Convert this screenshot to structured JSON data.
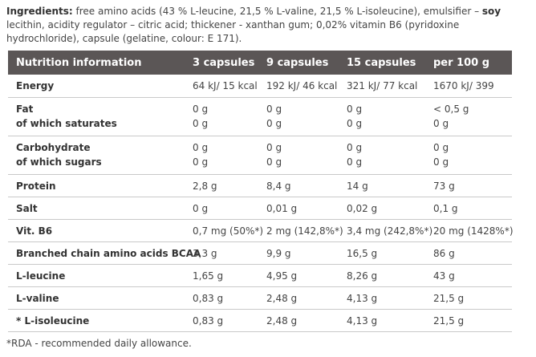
{
  "ingredients": {
    "label": "Ingredients:",
    "part1": " free amino acids (43 % L-leucine, 21,5 % L-valine, 21,5 % L-isoleucine), emulsifier – ",
    "soy": "soy",
    "part2": " lecithin, acidity regulator – citric acid; thickener - xanthan gum;  0,02% vitamin B6 (pyridoxine hydrochloride), capsule (gelatine, colour: E 171)."
  },
  "table": {
    "headers": [
      "Nutrition information",
      "3 capsules",
      "9 capsules",
      "15 capsules",
      "per 100 g"
    ],
    "rows": [
      {
        "labels": [
          "Energy"
        ],
        "values": [
          [
            "64 kJ/ 15 kcal"
          ],
          [
            "192 kJ/ 46 kcal"
          ],
          [
            "321 kJ/ 77 kcal"
          ],
          [
            "1670 kJ/ 399"
          ]
        ]
      },
      {
        "labels": [
          "Fat",
          "of which saturates"
        ],
        "values": [
          [
            "0 g",
            "0 g"
          ],
          [
            "0 g",
            "0 g"
          ],
          [
            "0 g",
            "0 g"
          ],
          [
            "< 0,5 g",
            "0 g"
          ]
        ]
      },
      {
        "labels": [
          "Carbohydrate",
          "of which sugars"
        ],
        "values": [
          [
            "0 g",
            "0 g"
          ],
          [
            "0 g",
            "0 g"
          ],
          [
            "0 g",
            "0 g"
          ],
          [
            "0 g",
            "0 g"
          ]
        ]
      },
      {
        "labels": [
          "Protein"
        ],
        "values": [
          [
            "2,8 g"
          ],
          [
            "8,4 g"
          ],
          [
            "14 g"
          ],
          [
            "73 g"
          ]
        ]
      },
      {
        "labels": [
          "Salt"
        ],
        "values": [
          [
            "0 g"
          ],
          [
            "0,01 g"
          ],
          [
            "0,02 g"
          ],
          [
            "0,1 g"
          ]
        ]
      },
      {
        "labels": [
          "Vit. B6"
        ],
        "values": [
          [
            "0,7 mg (50%*)"
          ],
          [
            "2 mg (142,8%*)"
          ],
          [
            "3,4 mg (242,8%*)"
          ],
          [
            "20 mg (1428%*)"
          ]
        ]
      },
      {
        "labels": [
          "Branched chain amino acids BCAA"
        ],
        "values": [
          [
            "3,3 g"
          ],
          [
            "9,9 g"
          ],
          [
            "16,5 g"
          ],
          [
            "86 g"
          ]
        ]
      },
      {
        "labels": [
          "L-leucine"
        ],
        "values": [
          [
            "1,65 g"
          ],
          [
            "4,95 g"
          ],
          [
            "8,26 g"
          ],
          [
            "43 g"
          ]
        ]
      },
      {
        "labels": [
          "L-valine"
        ],
        "values": [
          [
            "0,83 g"
          ],
          [
            "2,48 g"
          ],
          [
            "4,13 g"
          ],
          [
            "21,5 g"
          ]
        ]
      },
      {
        "labels": [
          "* L-isoleucine"
        ],
        "values": [
          [
            "0,83 g"
          ],
          [
            "2,48 g"
          ],
          [
            "4,13 g"
          ],
          [
            "21,5 g"
          ]
        ]
      }
    ]
  },
  "footnote": "*RDA - recommended daily allowance."
}
